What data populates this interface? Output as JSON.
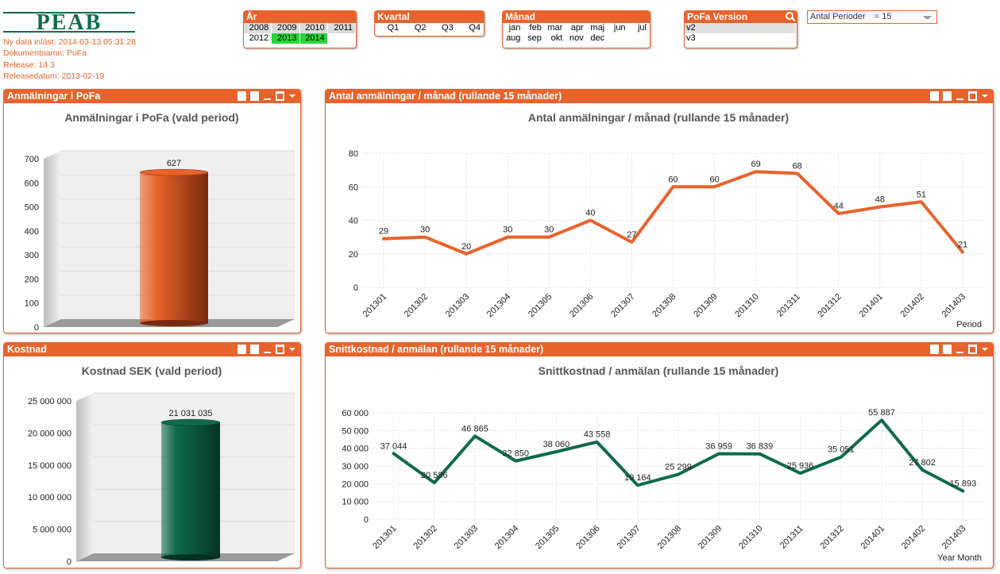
{
  "header": {
    "logo_text": "PEAB",
    "info_lines": [
      "Ny data inläst: 2014-03-13 05:31:28",
      "Dokumentnamn: PoFa",
      "Release:  14.3",
      "Releasedatum: 2013-02-19"
    ]
  },
  "filters": {
    "year": {
      "title": "År",
      "values": [
        "2008",
        "2009",
        "2010",
        "2011",
        "2012",
        "2013",
        "2014"
      ],
      "selected": [
        "2013",
        "2014"
      ]
    },
    "quarter": {
      "title": "Kvartal",
      "values": [
        "Q1",
        "Q2",
        "Q3",
        "Q4"
      ]
    },
    "month": {
      "title": "Månad",
      "values": [
        "jan",
        "feb",
        "mar",
        "apr",
        "maj",
        "jun",
        "jul",
        "aug",
        "sep",
        "okt",
        "nov",
        "dec"
      ]
    },
    "pofa_version": {
      "title": "PoFa Version",
      "values": [
        "v2",
        "v3"
      ],
      "highlighted": "v2"
    },
    "periods_dropdown": {
      "label": "Antal Perioder",
      "value": "= 15"
    }
  },
  "panels": {
    "p1": {
      "caption": "Anmälningar i PoFa"
    },
    "p2": {
      "caption": "Antal anmälningar / månad (rullande 15 månader)"
    },
    "p3": {
      "caption": "Kostnad"
    },
    "p4": {
      "caption": "Snittkostnad / anmälan (rullande 15 månader)"
    }
  },
  "colors": {
    "accent": "#e8632b",
    "selected": "#29d63a",
    "line1": "#e8632b",
    "line2": "#0f6a4d",
    "bar1": "#e8632b",
    "bar2": "#0f6a4d"
  },
  "chart_data": [
    {
      "type": "bar",
      "title": "Anmälningar i PoFa (vald period)",
      "categories": [
        ""
      ],
      "values": [
        627
      ],
      "data_labels": [
        "627"
      ],
      "ylim": [
        0,
        700
      ],
      "yticks": [
        "0",
        "100",
        "200",
        "300",
        "400",
        "500",
        "600",
        "700"
      ]
    },
    {
      "type": "line",
      "title": "Antal anmälningar / månad (rullande 15 månader)",
      "xlabel": "Period",
      "categories": [
        "201301",
        "201302",
        "201303",
        "201304",
        "201305",
        "201306",
        "201307",
        "201308",
        "201309",
        "201310",
        "201311",
        "201312",
        "201401",
        "201402",
        "201403"
      ],
      "values": [
        29,
        30,
        20,
        30,
        30,
        40,
        27,
        60,
        60,
        69,
        68,
        44,
        48,
        51,
        21
      ],
      "ylim": [
        0,
        80
      ],
      "yticks": [
        "0",
        "20",
        "40",
        "60",
        "80"
      ],
      "grid": true
    },
    {
      "type": "bar",
      "title": "Kostnad SEK (vald period)",
      "categories": [
        ""
      ],
      "values": [
        21031035
      ],
      "data_labels": [
        "21 031 035"
      ],
      "ylim": [
        0,
        25000000
      ],
      "yticks": [
        "0",
        "5 000 000",
        "10 000 000",
        "15 000 000",
        "20 000 000",
        "25 000 000"
      ]
    },
    {
      "type": "line",
      "title": "Snittkostnad / anmälan (rullande 15 månader)",
      "xlabel": "Year Month",
      "categories": [
        "201301",
        "201302",
        "201303",
        "201304",
        "201305",
        "201306",
        "201307",
        "201308",
        "201309",
        "201310",
        "201311",
        "201312",
        "201401",
        "201402",
        "201403"
      ],
      "values": [
        37044,
        20586,
        46865,
        32850,
        38060,
        43558,
        19164,
        25299,
        36959,
        36839,
        25936,
        35051,
        55887,
        27802,
        15893
      ],
      "data_labels": [
        "37 044",
        "20 586",
        "46 865",
        "32 850",
        "38 060",
        "43 558",
        "19 164",
        "25 299",
        "36 959",
        "36 839",
        "25 936",
        "35 051",
        "55 887",
        "27 802",
        "15 893"
      ],
      "ylim": [
        0,
        60000
      ],
      "yticks": [
        "0",
        "10 000",
        "20 000",
        "30 000",
        "40 000",
        "50 000",
        "60 000"
      ],
      "grid": true
    }
  ]
}
